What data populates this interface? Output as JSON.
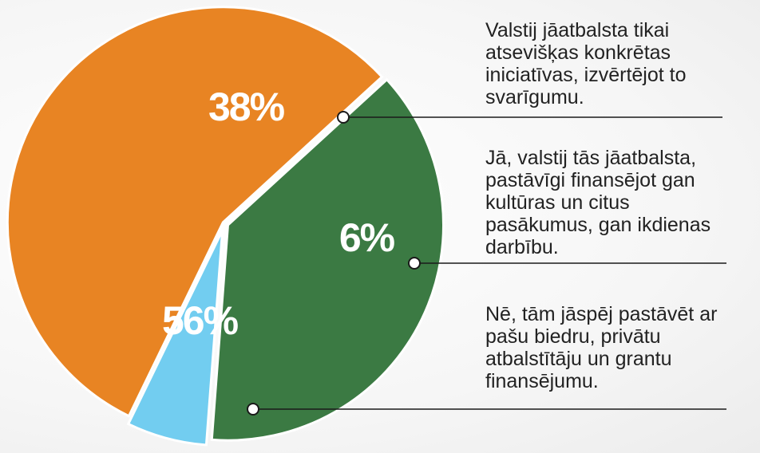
{
  "chart_data": {
    "type": "pie",
    "slices": [
      {
        "label": "Valstij jāatbalsta tikai atsevišķas konkrētas iniciatīvas, izvērtējot to svarīgumu.",
        "value": 38,
        "value_label": "38%",
        "color": "#3b7a43"
      },
      {
        "label": "Jā, valstij tās jāatbalsta, pastāvīgi finansējot gan kultūras un citus pasākumus, gan ikdienas darbību.",
        "value": 6,
        "value_label": "6%",
        "color": "#72cdf0"
      },
      {
        "label": "Nē, tām jāspēj pastāvēt ar pašu biedru, privātu atbalstītāju un grantu finansējumu.",
        "value": 56,
        "value_label": "56%",
        "color": "#e88423"
      }
    ]
  }
}
